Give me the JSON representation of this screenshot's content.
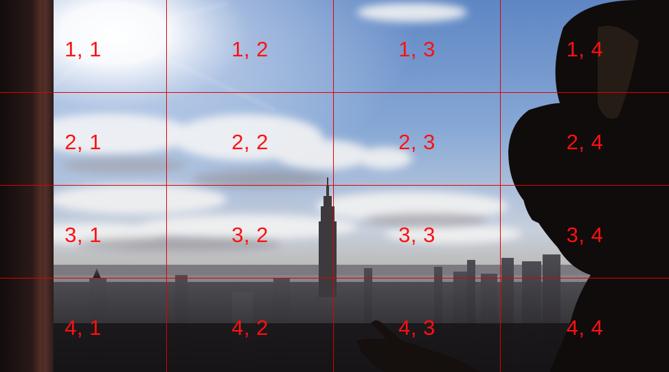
{
  "grid": {
    "line_color": "#e00000",
    "label_color": "#ff1010",
    "rows": [
      {
        "cells": [
          {
            "label": "1, 1"
          },
          {
            "label": "1, 2"
          },
          {
            "label": "1, 3"
          },
          {
            "label": "1, 4"
          }
        ]
      },
      {
        "cells": [
          {
            "label": "2, 1"
          },
          {
            "label": "2, 2"
          },
          {
            "label": "2, 3"
          },
          {
            "label": "2, 4"
          }
        ]
      },
      {
        "cells": [
          {
            "label": "3, 1"
          },
          {
            "label": "3, 2"
          },
          {
            "label": "3, 3"
          },
          {
            "label": "3, 4"
          }
        ]
      },
      {
        "cells": [
          {
            "label": "4, 1"
          },
          {
            "label": "4, 2"
          },
          {
            "label": "4, 3"
          },
          {
            "label": "4, 4"
          }
        ]
      }
    ]
  }
}
